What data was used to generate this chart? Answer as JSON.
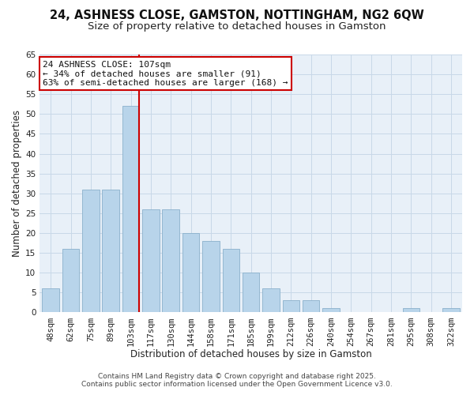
{
  "title": "24, ASHNESS CLOSE, GAMSTON, NOTTINGHAM, NG2 6QW",
  "subtitle": "Size of property relative to detached houses in Gamston",
  "xlabel": "Distribution of detached houses by size in Gamston",
  "ylabel": "Number of detached properties",
  "bar_labels": [
    "48sqm",
    "62sqm",
    "75sqm",
    "89sqm",
    "103sqm",
    "117sqm",
    "130sqm",
    "144sqm",
    "158sqm",
    "171sqm",
    "185sqm",
    "199sqm",
    "212sqm",
    "226sqm",
    "240sqm",
    "254sqm",
    "267sqm",
    "281sqm",
    "295sqm",
    "308sqm",
    "322sqm"
  ],
  "bar_values": [
    6,
    16,
    31,
    31,
    52,
    26,
    26,
    20,
    18,
    16,
    10,
    6,
    3,
    3,
    1,
    0,
    0,
    0,
    1,
    0,
    1
  ],
  "bar_color": "#b8d4ea",
  "bar_edge_color": "#8ab0cc",
  "ylim": [
    0,
    65
  ],
  "yticks": [
    0,
    5,
    10,
    15,
    20,
    25,
    30,
    35,
    40,
    45,
    50,
    55,
    60,
    65
  ],
  "vline_color": "#cc0000",
  "annotation_line1": "24 ASHNESS CLOSE: 107sqm",
  "annotation_line2": "← 34% of detached houses are smaller (91)",
  "annotation_line3": "63% of semi-detached houses are larger (168) →",
  "footer_line1": "Contains HM Land Registry data © Crown copyright and database right 2025.",
  "footer_line2": "Contains public sector information licensed under the Open Government Licence v3.0.",
  "background_color": "#ffffff",
  "plot_bg_color": "#e8f0f8",
  "grid_color": "#c8d8e8",
  "title_fontsize": 10.5,
  "subtitle_fontsize": 9.5,
  "axis_label_fontsize": 8.5,
  "tick_fontsize": 7.5,
  "annotation_fontsize": 8,
  "footer_fontsize": 6.5
}
